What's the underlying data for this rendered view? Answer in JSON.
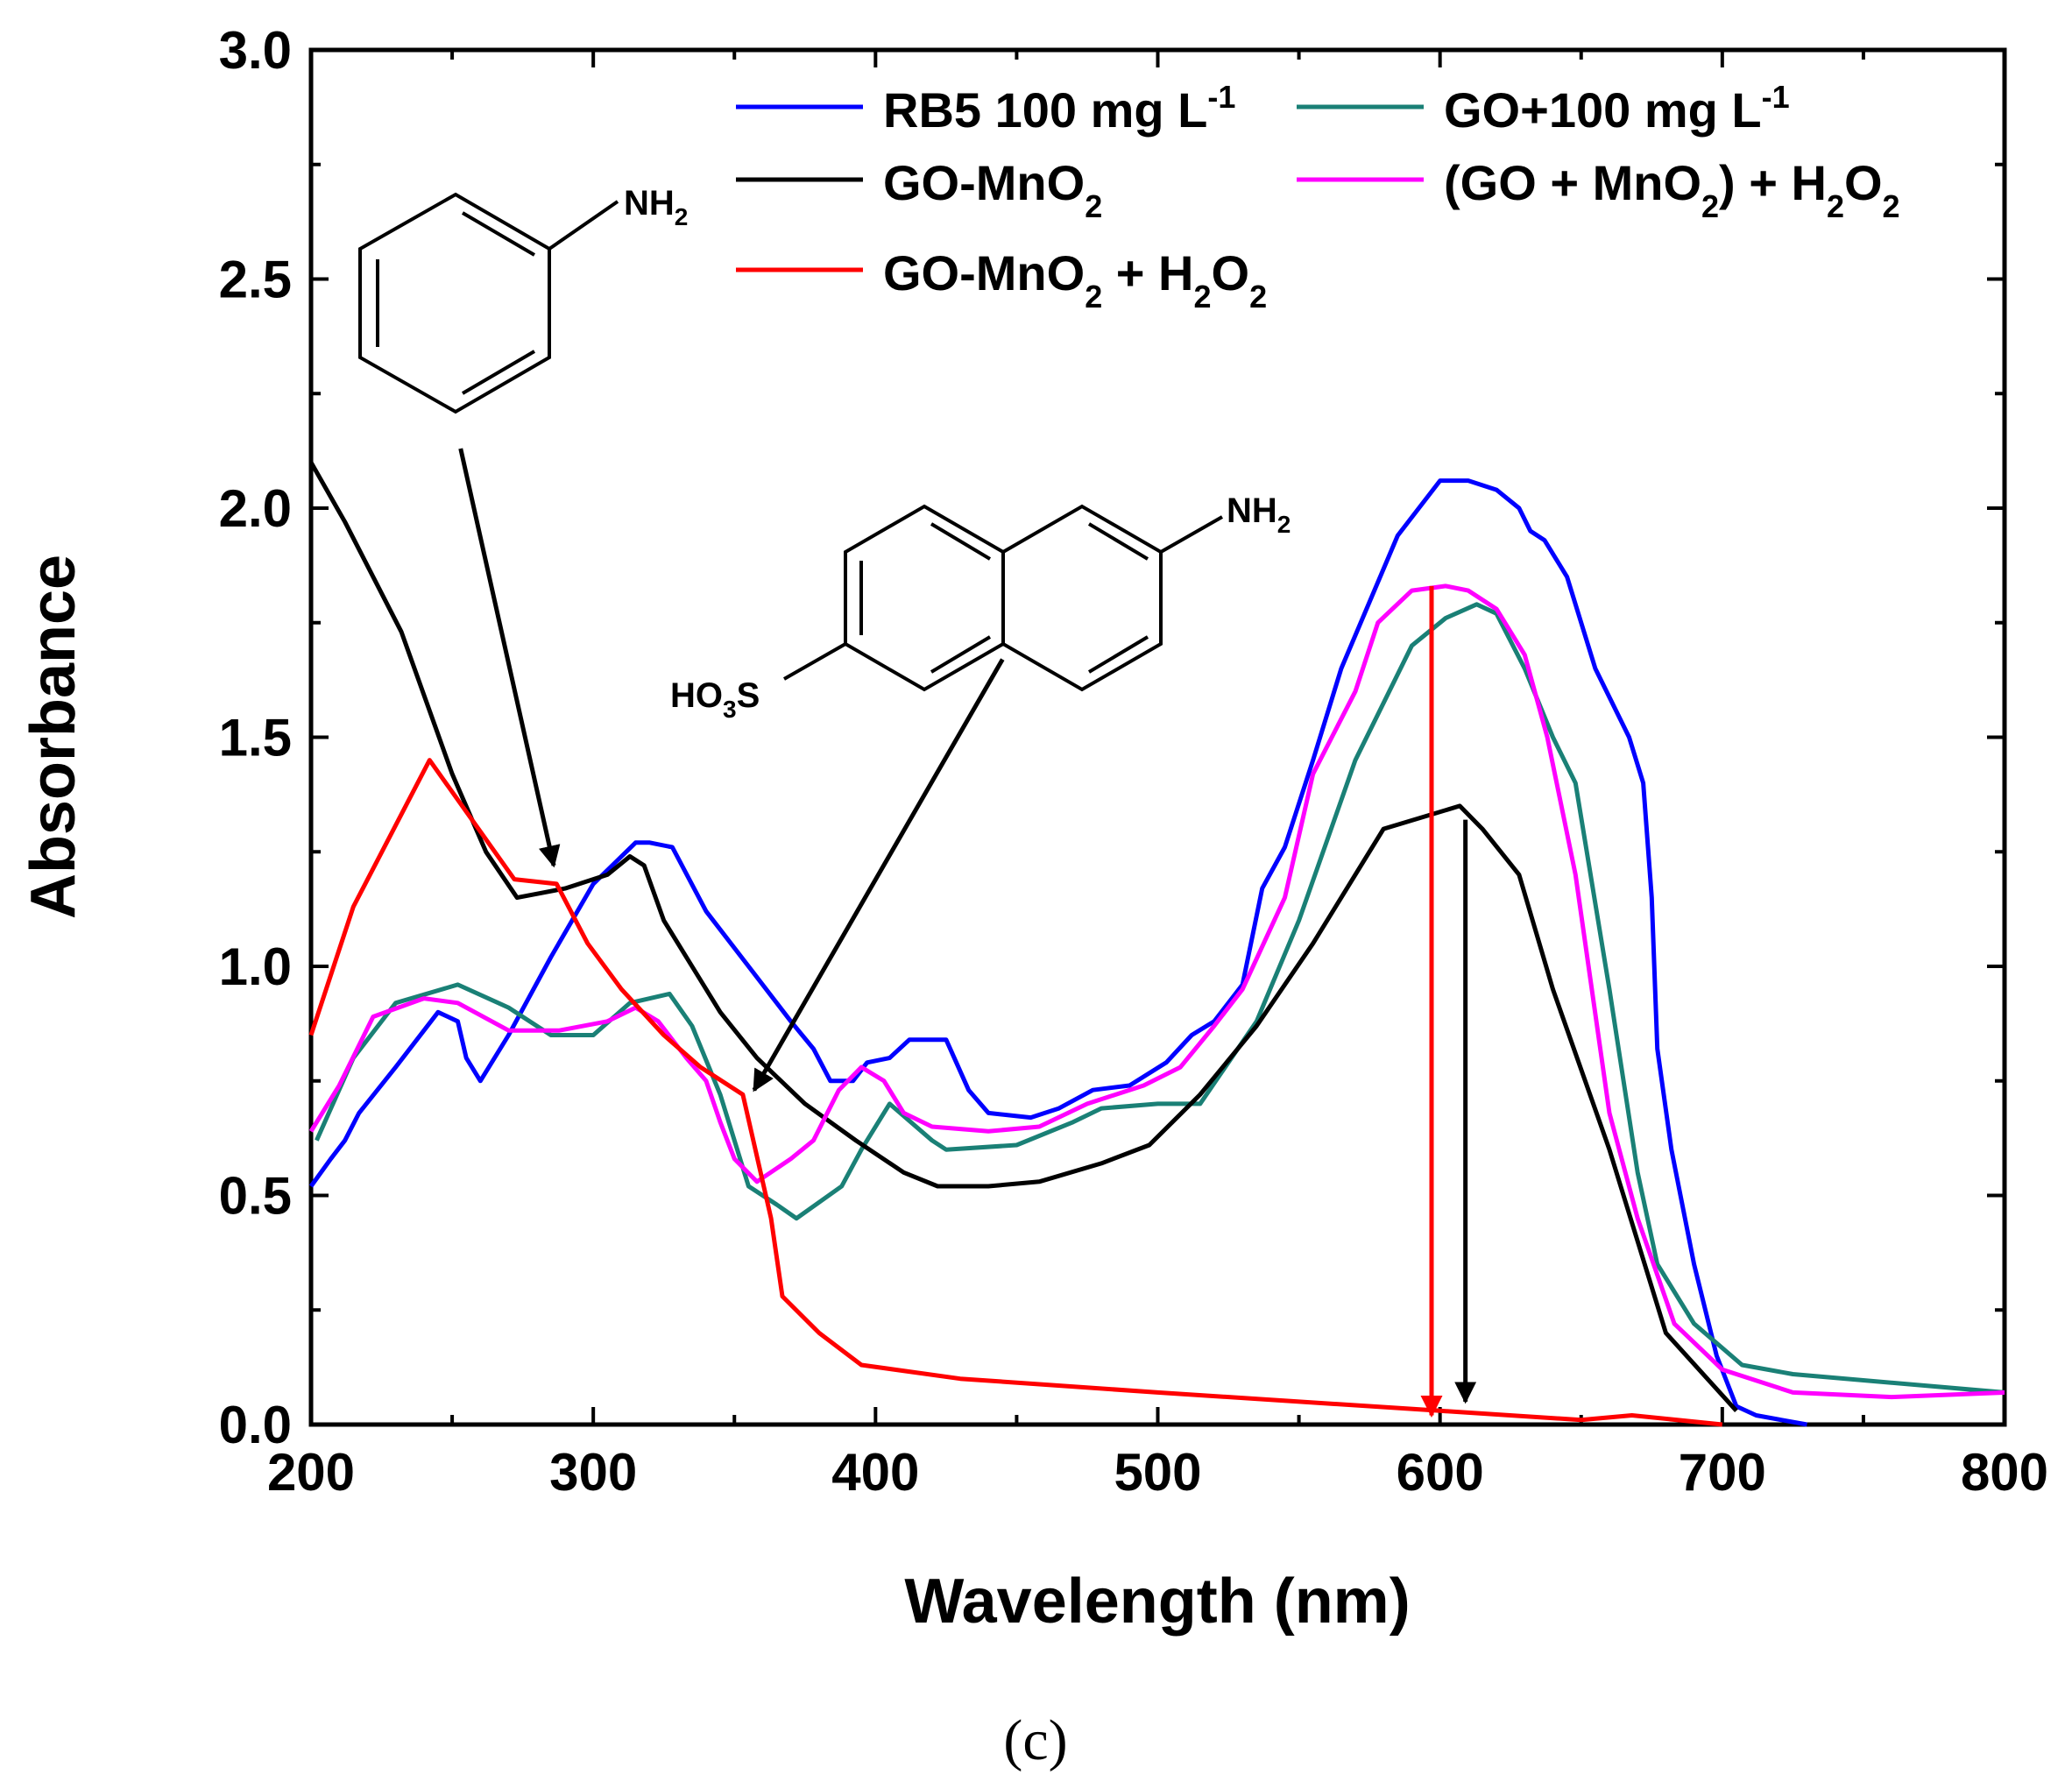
{
  "chart_data": {
    "type": "line",
    "xlabel": "Wavelength (nm)",
    "ylabel": "Absorbance",
    "xlim": [
      200,
      800
    ],
    "ylim": [
      0.0,
      3.0
    ],
    "x_ticks": [
      200,
      300,
      400,
      500,
      600,
      700,
      800
    ],
    "x_tick_labels": [
      "200",
      "300",
      "400",
      "500",
      "600",
      "700",
      "800"
    ],
    "y_ticks": [
      0.0,
      0.5,
      1.0,
      1.5,
      2.0,
      2.5,
      3.0
    ],
    "y_tick_labels": [
      "0.0",
      "0.5",
      "1.0",
      "1.5",
      "2.0",
      "2.5",
      "3.0"
    ],
    "legend_position": "top-right",
    "series": [
      {
        "name": "RB5 100 mg L-1",
        "label_main": "RB5 100 mg L",
        "label_sup": "-1",
        "color": "#0000ff",
        "points": [
          [
            200,
            0.52
          ],
          [
            207,
            0.58
          ],
          [
            212,
            0.62
          ],
          [
            217,
            0.68
          ],
          [
            230,
            0.78
          ],
          [
            240,
            0.86
          ],
          [
            245,
            0.9
          ],
          [
            252,
            0.88
          ],
          [
            255,
            0.8
          ],
          [
            260,
            0.75
          ],
          [
            270,
            0.85
          ],
          [
            285,
            1.02
          ],
          [
            300,
            1.18
          ],
          [
            310,
            1.24
          ],
          [
            315,
            1.27
          ],
          [
            320,
            1.27
          ],
          [
            328,
            1.26
          ],
          [
            340,
            1.12
          ],
          [
            355,
            1.0
          ],
          [
            370,
            0.88
          ],
          [
            378,
            0.82
          ],
          [
            384,
            0.75
          ],
          [
            392,
            0.75
          ],
          [
            397,
            0.79
          ],
          [
            405,
            0.8
          ],
          [
            412,
            0.84
          ],
          [
            425,
            0.84
          ],
          [
            433,
            0.73
          ],
          [
            440,
            0.68
          ],
          [
            455,
            0.67
          ],
          [
            465,
            0.69
          ],
          [
            477,
            0.73
          ],
          [
            490,
            0.74
          ],
          [
            503,
            0.79
          ],
          [
            512,
            0.85
          ],
          [
            520,
            0.88
          ],
          [
            530,
            0.96
          ],
          [
            537,
            1.17
          ],
          [
            545,
            1.26
          ],
          [
            555,
            1.45
          ],
          [
            565,
            1.65
          ],
          [
            585,
            1.94
          ],
          [
            600,
            2.06
          ],
          [
            610,
            2.06
          ],
          [
            620,
            2.04
          ],
          [
            628,
            2.0
          ],
          [
            632,
            1.95
          ],
          [
            637,
            1.93
          ],
          [
            645,
            1.85
          ],
          [
            655,
            1.65
          ],
          [
            667,
            1.5
          ],
          [
            672,
            1.4
          ],
          [
            675,
            1.15
          ],
          [
            677,
            0.82
          ],
          [
            682,
            0.6
          ],
          [
            690,
            0.35
          ],
          [
            698,
            0.15
          ],
          [
            705,
            0.04
          ],
          [
            712,
            0.02
          ],
          [
            730,
            0.0
          ]
        ]
      },
      {
        "name": "GO+100 mg L-1",
        "label_main": "GO+100 mg L",
        "label_sup": "-1",
        "color": "#1a8076",
        "points": [
          [
            202,
            0.62
          ],
          [
            215,
            0.8
          ],
          [
            230,
            0.92
          ],
          [
            252,
            0.96
          ],
          [
            270,
            0.91
          ],
          [
            285,
            0.85
          ],
          [
            300,
            0.85
          ],
          [
            313,
            0.92
          ],
          [
            327,
            0.94
          ],
          [
            335,
            0.87
          ],
          [
            345,
            0.72
          ],
          [
            350,
            0.62
          ],
          [
            355,
            0.52
          ],
          [
            365,
            0.48
          ],
          [
            372,
            0.45
          ],
          [
            388,
            0.52
          ],
          [
            395,
            0.6
          ],
          [
            405,
            0.7
          ],
          [
            420,
            0.62
          ],
          [
            425,
            0.6
          ],
          [
            450,
            0.61
          ],
          [
            470,
            0.66
          ],
          [
            480,
            0.69
          ],
          [
            500,
            0.7
          ],
          [
            515,
            0.7
          ],
          [
            535,
            0.88
          ],
          [
            550,
            1.1
          ],
          [
            570,
            1.45
          ],
          [
            590,
            1.7
          ],
          [
            602,
            1.76
          ],
          [
            613,
            1.79
          ],
          [
            620,
            1.77
          ],
          [
            630,
            1.65
          ],
          [
            640,
            1.5
          ],
          [
            648,
            1.4
          ],
          [
            660,
            0.95
          ],
          [
            670,
            0.55
          ],
          [
            677,
            0.35
          ],
          [
            690,
            0.22
          ],
          [
            707,
            0.13
          ],
          [
            725,
            0.11
          ],
          [
            800,
            0.07
          ]
        ]
      },
      {
        "name": "GO-MnO2",
        "label_main": "GO-MnO",
        "label_sub": "2",
        "color": "#000000",
        "points": [
          [
            200,
            2.1
          ],
          [
            212,
            1.97
          ],
          [
            232,
            1.73
          ],
          [
            250,
            1.42
          ],
          [
            262,
            1.25
          ],
          [
            273,
            1.15
          ],
          [
            290,
            1.17
          ],
          [
            305,
            1.2
          ],
          [
            313,
            1.24
          ],
          [
            318,
            1.22
          ],
          [
            325,
            1.1
          ],
          [
            335,
            1.0
          ],
          [
            345,
            0.9
          ],
          [
            358,
            0.8
          ],
          [
            375,
            0.7
          ],
          [
            393,
            0.62
          ],
          [
            410,
            0.55
          ],
          [
            422,
            0.52
          ],
          [
            440,
            0.52
          ],
          [
            458,
            0.53
          ],
          [
            480,
            0.57
          ],
          [
            497,
            0.61
          ],
          [
            515,
            0.72
          ],
          [
            535,
            0.87
          ],
          [
            555,
            1.05
          ],
          [
            580,
            1.3
          ],
          [
            607,
            1.35
          ],
          [
            615,
            1.3
          ],
          [
            628,
            1.2
          ],
          [
            640,
            0.95
          ],
          [
            660,
            0.6
          ],
          [
            680,
            0.2
          ],
          [
            705,
            0.03
          ]
        ]
      },
      {
        "name": "(GO + MnO2) + H2O2",
        "label_main": "(GO + MnO",
        "label_sub": "2",
        "label_mid": ") + H",
        "label_sub2": "2",
        "label_end": "O",
        "label_sub3": "2",
        "color": "#ff00ff",
        "points": [
          [
            200,
            0.64
          ],
          [
            210,
            0.74
          ],
          [
            222,
            0.89
          ],
          [
            240,
            0.93
          ],
          [
            252,
            0.92
          ],
          [
            270,
            0.86
          ],
          [
            288,
            0.86
          ],
          [
            305,
            0.88
          ],
          [
            315,
            0.91
          ],
          [
            323,
            0.88
          ],
          [
            333,
            0.8
          ],
          [
            340,
            0.75
          ],
          [
            345,
            0.66
          ],
          [
            350,
            0.58
          ],
          [
            358,
            0.53
          ],
          [
            370,
            0.58
          ],
          [
            378,
            0.62
          ],
          [
            387,
            0.73
          ],
          [
            395,
            0.78
          ],
          [
            403,
            0.75
          ],
          [
            410,
            0.68
          ],
          [
            420,
            0.65
          ],
          [
            440,
            0.64
          ],
          [
            458,
            0.65
          ],
          [
            475,
            0.7
          ],
          [
            495,
            0.74
          ],
          [
            508,
            0.78
          ],
          [
            520,
            0.87
          ],
          [
            530,
            0.95
          ],
          [
            545,
            1.15
          ],
          [
            555,
            1.42
          ],
          [
            570,
            1.6
          ],
          [
            578,
            1.75
          ],
          [
            590,
            1.82
          ],
          [
            602,
            1.83
          ],
          [
            610,
            1.82
          ],
          [
            620,
            1.78
          ],
          [
            630,
            1.68
          ],
          [
            638,
            1.5
          ],
          [
            648,
            1.2
          ],
          [
            660,
            0.68
          ],
          [
            670,
            0.45
          ],
          [
            683,
            0.22
          ],
          [
            700,
            0.12
          ],
          [
            725,
            0.07
          ],
          [
            760,
            0.06
          ],
          [
            800,
            0.07
          ]
        ]
      },
      {
        "name": "GO-MnO2 + H2O2",
        "label_main": "GO-MnO",
        "label_sub": "2",
        "label_mid": " + H",
        "label_sub2": "2",
        "label_end": "O",
        "label_sub3": "2",
        "color": "#ff0000",
        "points": [
          [
            200,
            0.85
          ],
          [
            215,
            1.13
          ],
          [
            242,
            1.45
          ],
          [
            272,
            1.19
          ],
          [
            287,
            1.18
          ],
          [
            298,
            1.05
          ],
          [
            310,
            0.95
          ],
          [
            325,
            0.85
          ],
          [
            338,
            0.78
          ],
          [
            353,
            0.72
          ],
          [
            363,
            0.45
          ],
          [
            367,
            0.28
          ],
          [
            380,
            0.2
          ],
          [
            395,
            0.13
          ],
          [
            430,
            0.1
          ],
          [
            500,
            0.07
          ],
          [
            600,
            0.03
          ],
          [
            650,
            0.01
          ],
          [
            668,
            0.02
          ],
          [
            700,
            0.0
          ]
        ]
      }
    ],
    "annotations": {
      "arrows": [
        {
          "color": "#000000",
          "from": [
            253,
            2.13
          ],
          "to": [
            286,
            1.22
          ]
        },
        {
          "color": "#000000",
          "from": [
            445,
            1.67
          ],
          "to": [
            357,
            0.73
          ]
        },
        {
          "color": "#ff0000",
          "from": [
            597,
            1.83
          ],
          "to": [
            597,
            0.02
          ]
        },
        {
          "color": "#000000",
          "from": [
            609,
            1.32
          ],
          "to": [
            609,
            0.05
          ]
        }
      ],
      "molecule_aniline": {
        "substituent": "NH",
        "sub": "2"
      },
      "molecule_naphthalene": {
        "amine": "NH",
        "amine_sub": "2",
        "sulfo_pre": "HO",
        "sulfo_sub": "3",
        "sulfo_post": "S"
      }
    },
    "panel_label": "(c)"
  }
}
